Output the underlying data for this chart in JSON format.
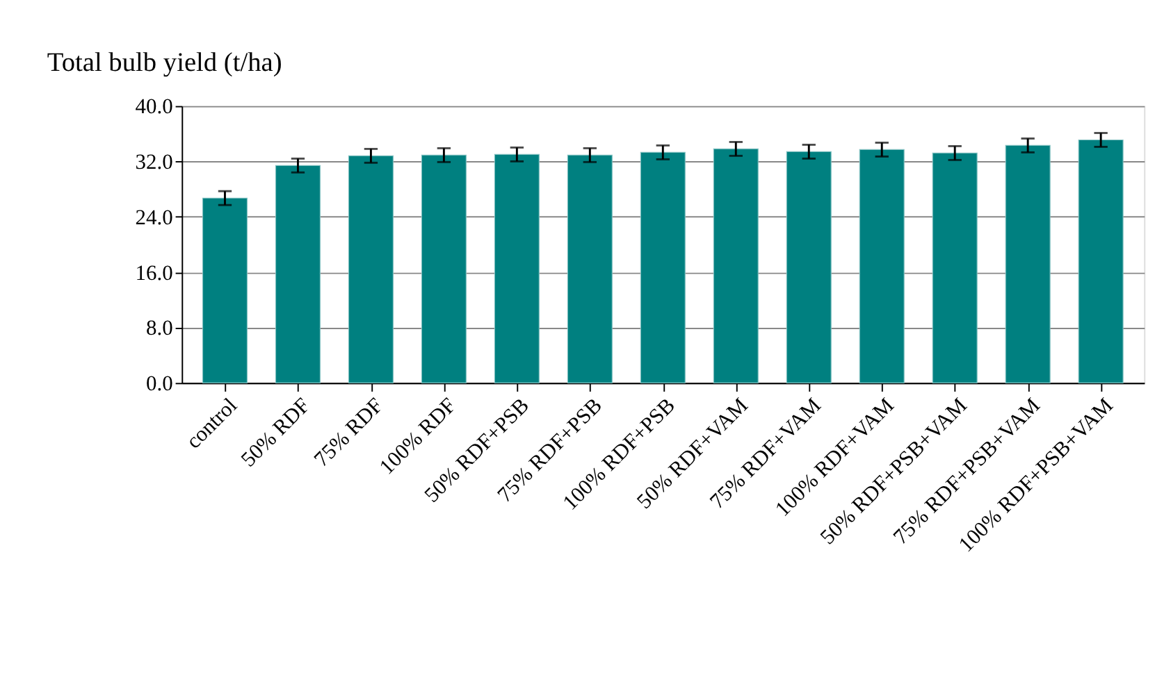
{
  "chart_data": {
    "type": "bar",
    "title": "Total bulb yield (t/ha)",
    "categories": [
      "control",
      "50% RDF",
      "75% RDF",
      "100% RDF",
      "50% RDF+PSB",
      "75% RDF+PSB",
      "100% RDF+PSB",
      "50% RDF+VAM",
      "75% RDF+VAM",
      "100% RDF+VAM",
      "50% RDF+PSB+VAM",
      "75% RDF+PSB+VAM",
      "100% RDF+PSB+VAM"
    ],
    "values": [
      26.7,
      31.4,
      32.8,
      32.9,
      33.0,
      32.9,
      33.3,
      33.8,
      33.4,
      33.7,
      33.2,
      34.3,
      35.1
    ],
    "errors": [
      1.0,
      1.0,
      1.0,
      1.0,
      1.0,
      1.0,
      1.0,
      1.0,
      1.0,
      1.0,
      1.0,
      1.0,
      1.0
    ],
    "color": "#008080",
    "ylim": [
      0,
      40
    ],
    "yticks": [
      {
        "value": 0,
        "label": "0.0"
      },
      {
        "value": 8,
        "label": "8.0"
      },
      {
        "value": 16,
        "label": "16.0"
      },
      {
        "value": 24,
        "label": "24.0"
      },
      {
        "value": 32,
        "label": "32.0"
      },
      {
        "value": 40,
        "label": "40.0"
      }
    ],
    "grid": "y"
  }
}
